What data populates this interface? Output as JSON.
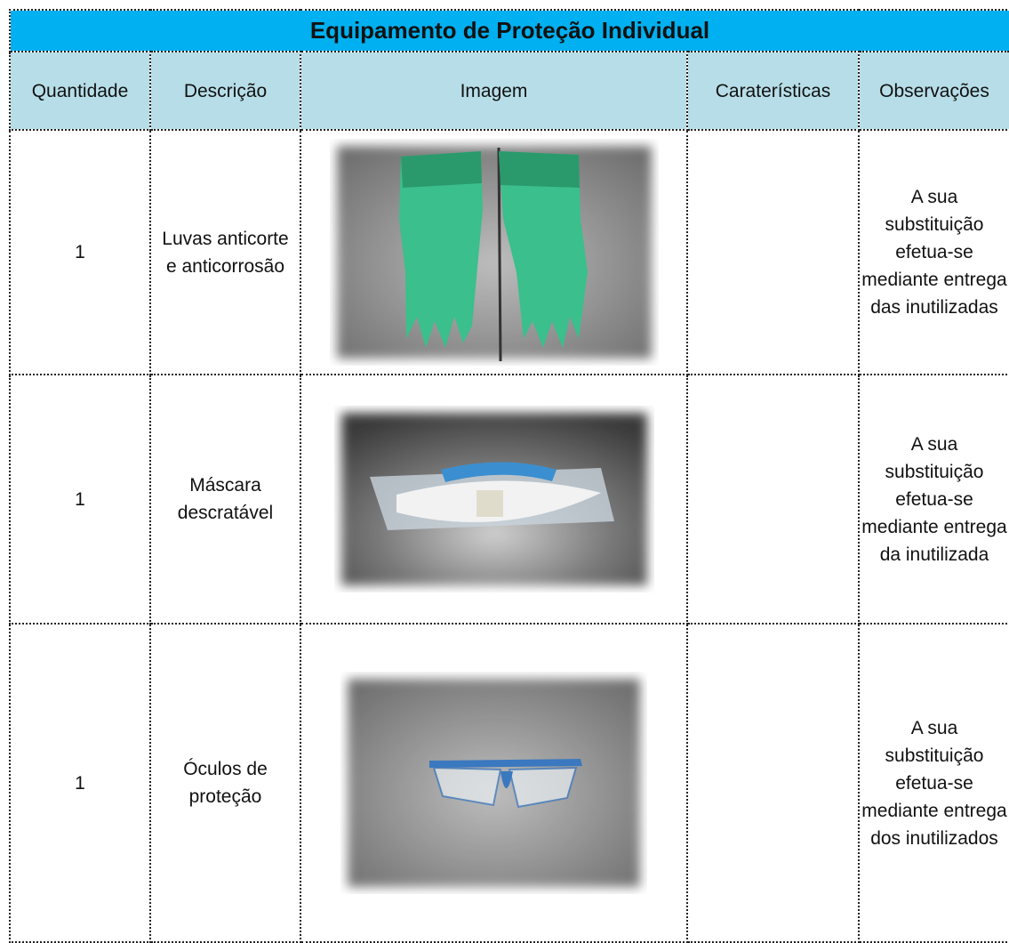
{
  "title": "Equipamento de Proteção Individual",
  "table": {
    "headers": [
      "Quantidade",
      "Descrição",
      "Imagem",
      "Caraterísticas",
      "Observações"
    ],
    "rows": [
      {
        "quantity": "1",
        "description": "Luvas anticorte e anticorrosão",
        "observations": "A sua substituição efetua-se mediante entrega das inutilizadas"
      },
      {
        "quantity": "1",
        "description": "Máscara descratável",
        "observations": "A sua substituição efetua-se mediante entrega da inutilizada"
      },
      {
        "quantity": "1",
        "description": "Óculos de proteção",
        "observations": "A sua substituição efetua-se mediante entrega dos inutilizados"
      }
    ]
  }
}
